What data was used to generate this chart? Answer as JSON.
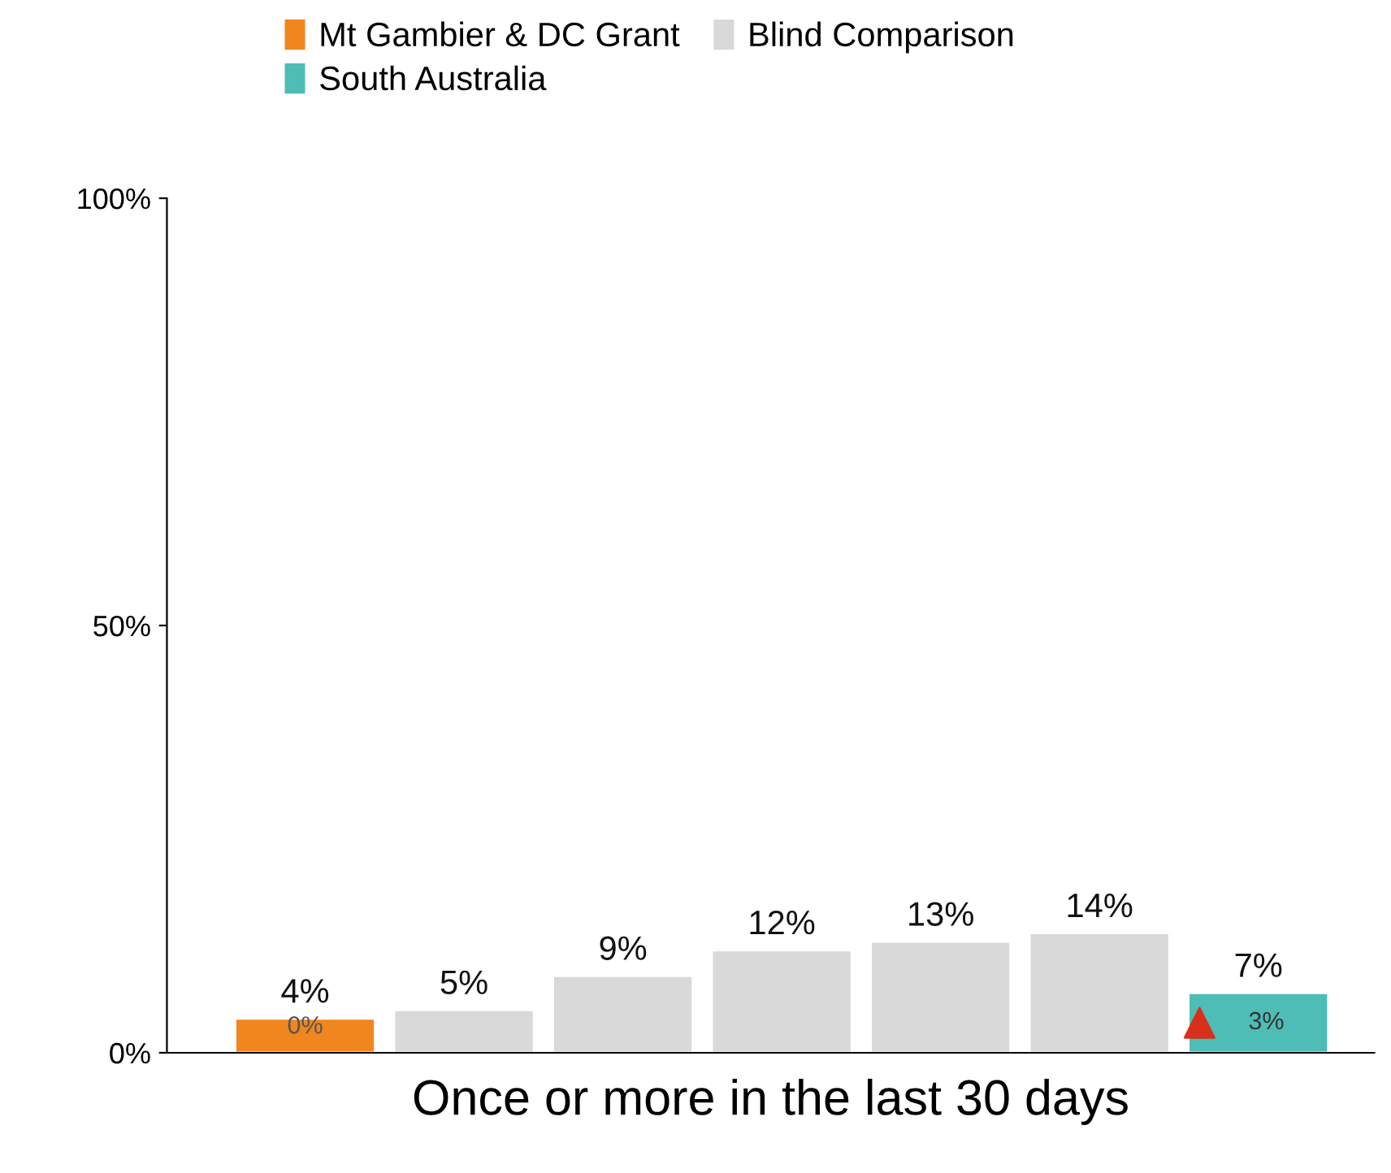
{
  "chart_data": {
    "type": "bar",
    "xlabel": "Once or more in the last 30 days",
    "categories": [
      null,
      null,
      null,
      null,
      null,
      null,
      null
    ],
    "series": [
      {
        "name": "Mt Gambier & DC Grant",
        "color": "#f0861e",
        "values": [
          4,
          null,
          null,
          null,
          null,
          null,
          null
        ],
        "value_labels": [
          "4%",
          null,
          null,
          null,
          null,
          null,
          null
        ]
      },
      {
        "name": "Blind Comparison",
        "color": "#d9d9d9",
        "values": [
          null,
          5,
          9,
          12,
          13,
          14,
          null
        ],
        "value_labels": [
          null,
          "5%",
          "9%",
          "12%",
          "13%",
          "14%",
          null
        ]
      },
      {
        "name": "South Australia",
        "color": "#4dbdb6",
        "values": [
          null,
          null,
          null,
          null,
          null,
          null,
          7
        ],
        "value_labels": [
          null,
          null,
          null,
          null,
          null,
          null,
          "7%"
        ]
      }
    ],
    "ylim": [
      0,
      100
    ],
    "yticks": [
      {
        "value": 0,
        "label": "0%"
      },
      {
        "value": 50,
        "label": "50%"
      },
      {
        "value": 100,
        "label": "100%"
      }
    ],
    "grid": false,
    "legend": "top",
    "annotations": [
      "0%",
      "3%"
    ]
  }
}
